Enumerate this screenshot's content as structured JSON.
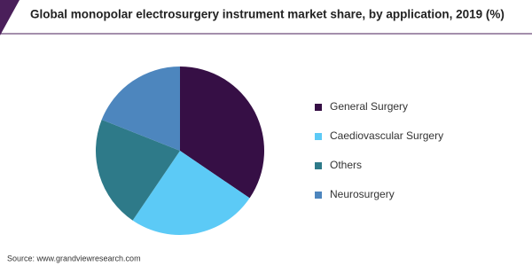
{
  "chart_data": {
    "type": "pie",
    "title": "Global monopolar electrosurgery instrument market share, by application, 2019 (%)",
    "categories": [
      "General Surgery",
      "Caediovascular Surgery",
      "Others",
      "Neurosurgery"
    ],
    "values": [
      34.5,
      25,
      21.5,
      19
    ],
    "colors": [
      "#360f45",
      "#5ccaf6",
      "#2e7a89",
      "#4d86be"
    ],
    "legend": "right",
    "source": "Source: www.grandviewresearch.com"
  }
}
